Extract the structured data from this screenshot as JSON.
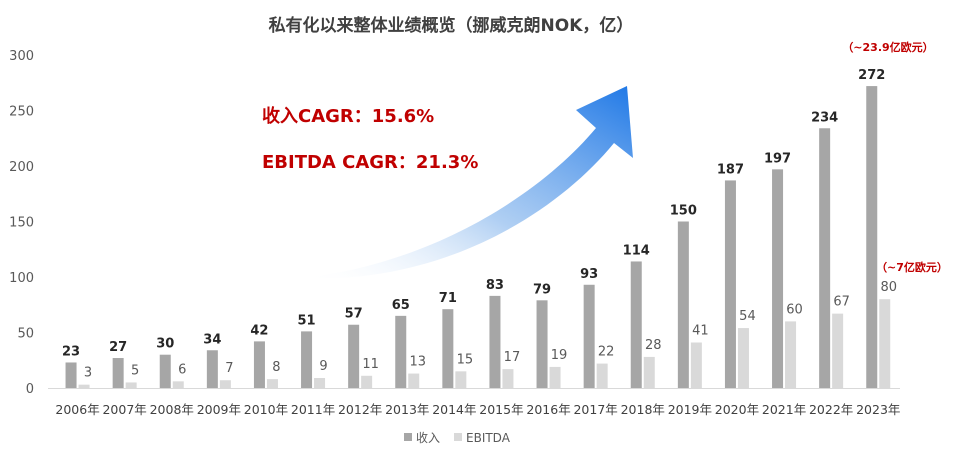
{
  "chart_data": {
    "type": "bar",
    "title": "私有化以来整体业绩概览（挪威克朗NOK，亿）",
    "categories": [
      "2006年",
      "2007年",
      "2008年",
      "2009年",
      "2010年",
      "2011年",
      "2012年",
      "2013年",
      "2014年",
      "2015年",
      "2016年",
      "2017年",
      "2018年",
      "2019年",
      "2020年",
      "2021年",
      "2022年",
      "2023年"
    ],
    "series": [
      {
        "name": "收入",
        "values": [
          23,
          27,
          30,
          34,
          42,
          51,
          57,
          65,
          71,
          83,
          79,
          93,
          114,
          150,
          187,
          197,
          234,
          272
        ],
        "color": "#a6a6a6"
      },
      {
        "name": "EBITDA",
        "values": [
          3,
          5,
          6,
          7,
          8,
          9,
          11,
          13,
          15,
          17,
          19,
          22,
          28,
          41,
          54,
          60,
          67,
          80
        ],
        "color": "#d9d9d9"
      }
    ],
    "ylim": [
      0,
      300
    ],
    "yticks": [
      "0",
      "50",
      "100",
      "150",
      "200",
      "250",
      "300"
    ],
    "grid": false,
    "legend": "bottom",
    "annotations": {
      "cagr_revenue": "收入CAGR：15.6%",
      "cagr_ebitda": "EBITDA CAGR：21.3%",
      "note_revenue": "（~23.9亿欧元）",
      "note_ebitda": "（~7亿欧元）"
    },
    "accent_color": "#c00000"
  }
}
